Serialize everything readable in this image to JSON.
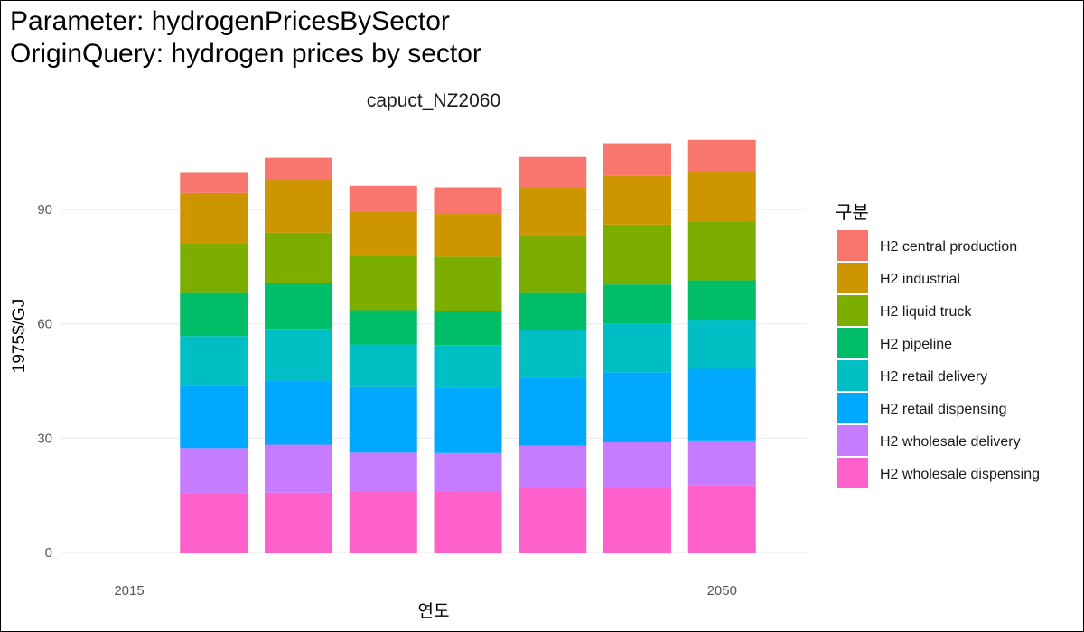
{
  "header": {
    "title_line1": "Parameter: hydrogenPricesBySector",
    "title_line2": "OriginQuery: hydrogen prices by sector"
  },
  "chart_data": {
    "type": "bar",
    "stacked": true,
    "panel_title": "capuct_NZ2060",
    "xlabel": "연도",
    "ylabel": "1975$/GJ",
    "x": [
      2020,
      2025,
      2030,
      2035,
      2040,
      2045,
      2050
    ],
    "xlim": [
      2011,
      2055
    ],
    "x_ticks": [
      2015,
      2050
    ],
    "ylim": [
      0,
      110
    ],
    "y_ticks": [
      0,
      30,
      60,
      90
    ],
    "grid": true,
    "legend_title": "구분",
    "legend_position": "right",
    "series": [
      {
        "name": "H2 wholesale dispensing",
        "color": "#FF61CC",
        "values": [
          15.5,
          15.7,
          16.0,
          16.0,
          16.9,
          17.3,
          17.6
        ]
      },
      {
        "name": "H2 wholesale delivery",
        "color": "#C77CFF",
        "values": [
          11.9,
          12.6,
          10.2,
          10.1,
          11.1,
          11.6,
          11.8
        ]
      },
      {
        "name": "H2 retail dispensing",
        "color": "#00A9FF",
        "values": [
          16.5,
          16.8,
          17.2,
          17.1,
          17.8,
          18.4,
          18.8
        ]
      },
      {
        "name": "H2 retail delivery",
        "color": "#00BFC4",
        "values": [
          12.9,
          13.6,
          11.2,
          11.2,
          12.5,
          12.8,
          12.9
        ]
      },
      {
        "name": "H2 pipeline",
        "color": "#00BE67",
        "values": [
          11.5,
          12.0,
          9.0,
          9.0,
          10.0,
          10.2,
          10.3
        ]
      },
      {
        "name": "H2 liquid truck",
        "color": "#7CAE00",
        "values": [
          12.8,
          13.2,
          14.5,
          14.2,
          15.0,
          15.7,
          15.5
        ]
      },
      {
        "name": "H2 industrial",
        "color": "#CD9600",
        "values": [
          13.2,
          13.9,
          11.2,
          11.2,
          12.6,
          12.8,
          13.0
        ]
      },
      {
        "name": "H2 central production",
        "color": "#F8766D",
        "values": [
          5.3,
          5.8,
          6.9,
          7.0,
          7.9,
          8.6,
          8.4
        ]
      }
    ]
  }
}
